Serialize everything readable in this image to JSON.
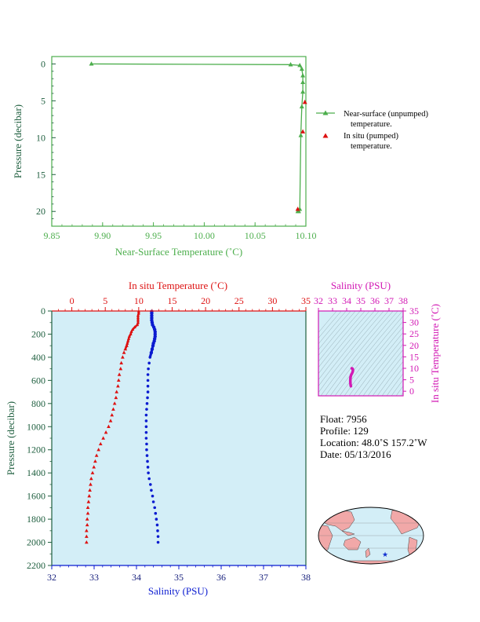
{
  "colors": {
    "green": "#4cae4c",
    "red": "#dd1111",
    "blue": "#0a1bd0",
    "magenta": "#d219b4",
    "navy": "#1a237e",
    "darkgreen": "#1f5f3f",
    "panel_bg": "#d3eef7",
    "land": "#f1a8a8",
    "ocean": "#d3eef7"
  },
  "top_chart": {
    "xlabel": "Near-Surface Temperature (˚C)",
    "ylabel": "Pressure (decibar)",
    "x_ticks": [
      "9.85",
      "9.90",
      "9.95",
      "10.00",
      "10.05",
      "10.10"
    ],
    "y_ticks": [
      "0",
      "5",
      "10",
      "15",
      "20"
    ],
    "legend": {
      "item1_line1": "Near-surface (unpumped)",
      "item1_line2": "temperature.",
      "item2_line1": "In situ (pumped)",
      "item2_line2": "temperature."
    }
  },
  "bottom_chart": {
    "top_xlabel": "In situ Temperature (˚C)",
    "bottom_xlabel": "Salinity (PSU)",
    "ylabel": "Pressure (decibar)",
    "temp_ticks": [
      "0",
      "5",
      "10",
      "15",
      "20",
      "25",
      "30",
      "35"
    ],
    "sal_ticks": [
      "32",
      "33",
      "34",
      "35",
      "36",
      "37",
      "38"
    ],
    "p_ticks": [
      "0",
      "200",
      "400",
      "600",
      "800",
      "1000",
      "1200",
      "1400",
      "1600",
      "1800",
      "2000",
      "2200"
    ]
  },
  "ts_inset": {
    "xlabel": "Salinity (PSU)",
    "ylabel": "In situ Temperature (˚C)",
    "x_ticks": [
      "32",
      "33",
      "34",
      "35",
      "36",
      "37",
      "38"
    ],
    "y_ticks": [
      "0",
      "5",
      "10",
      "15",
      "20",
      "25",
      "30",
      "35"
    ]
  },
  "float_info": {
    "float": "Float:  7956",
    "profile": "Profile:  129",
    "location": "Location:  48.0˚S  157.2˚W",
    "date": "Date:  05/13/2016"
  },
  "map": {
    "marker": "float-location-star"
  },
  "footer_text": "",
  "chart_data": [
    {
      "type": "line",
      "title": "",
      "xlabel": "Near-Surface Temperature (˚C)",
      "ylabel": "Pressure (decibar)",
      "xlim": [
        9.85,
        10.1
      ],
      "ylim": [
        22,
        -1
      ],
      "series": [
        {
          "name": "Near-surface (unpumped) temperature.",
          "x": [
            9.889,
            10.085,
            10.094,
            10.096,
            10.097,
            10.097,
            10.097,
            10.096,
            10.095,
            10.094,
            10.093,
            10.092
          ],
          "y": [
            0.0,
            0.1,
            0.2,
            0.7,
            1.6,
            2.5,
            3.8,
            5.8,
            9.7,
            19.7,
            20.0,
            20.0
          ]
        },
        {
          "name": "In situ (pumped) temperature.",
          "x": [
            10.099,
            10.097,
            10.092
          ],
          "y": [
            5.2,
            9.2,
            19.7
          ]
        }
      ]
    },
    {
      "type": "scatter",
      "title": "",
      "xlabel": "Salinity (PSU)",
      "x2label": "In situ Temperature (˚C)",
      "ylabel": "Pressure (decibar)",
      "xlim": [
        32,
        38
      ],
      "x2lim": [
        -3,
        35
      ],
      "ylim": [
        2200,
        0
      ],
      "series": [
        {
          "name": "In situ Temperature (˚C)",
          "axis": "top",
          "pressure": [
            5,
            20,
            40,
            60,
            80,
            100,
            120,
            140,
            160,
            180,
            200,
            220,
            240,
            260,
            280,
            300,
            330,
            360,
            400,
            450,
            500,
            550,
            600,
            650,
            700,
            750,
            800,
            850,
            900,
            950,
            1000,
            1050,
            1100,
            1150,
            1200,
            1250,
            1300,
            1350,
            1400,
            1450,
            1500,
            1550,
            1600,
            1650,
            1700,
            1750,
            1800,
            1850,
            1900,
            1950,
            2000
          ],
          "values": [
            10.0,
            10.0,
            9.9,
            9.9,
            9.9,
            9.9,
            9.8,
            9.4,
            9.1,
            8.9,
            8.8,
            8.6,
            8.5,
            8.4,
            8.3,
            8.2,
            8.0,
            7.8,
            7.6,
            7.4,
            7.3,
            7.1,
            7.0,
            6.9,
            6.7,
            6.6,
            6.4,
            6.2,
            6.0,
            5.8,
            5.5,
            5.1,
            4.7,
            4.3,
            4.0,
            3.7,
            3.5,
            3.3,
            3.1,
            2.9,
            2.8,
            2.7,
            2.6,
            2.5,
            2.4,
            2.4,
            2.3,
            2.3,
            2.2,
            2.2,
            2.2
          ]
        },
        {
          "name": "Salinity (PSU)",
          "axis": "bottom",
          "pressure": [
            5,
            20,
            40,
            60,
            80,
            100,
            120,
            140,
            160,
            180,
            200,
            220,
            240,
            260,
            280,
            300,
            330,
            360,
            400,
            450,
            500,
            550,
            600,
            650,
            700,
            750,
            800,
            850,
            900,
            950,
            1000,
            1050,
            1100,
            1150,
            1200,
            1250,
            1300,
            1350,
            1400,
            1450,
            1500,
            1550,
            1600,
            1650,
            1700,
            1750,
            1800,
            1850,
            1900,
            1950,
            2000
          ],
          "values": [
            34.36,
            34.36,
            34.36,
            34.36,
            34.36,
            34.37,
            34.38,
            34.41,
            34.43,
            34.44,
            34.44,
            34.44,
            34.43,
            34.42,
            34.4,
            34.39,
            34.37,
            34.35,
            34.32,
            34.3,
            34.28,
            34.27,
            34.27,
            34.27,
            34.27,
            34.26,
            34.25,
            34.24,
            34.23,
            34.23,
            34.23,
            34.23,
            34.23,
            34.24,
            34.24,
            34.25,
            34.26,
            34.27,
            34.28,
            34.3,
            34.33,
            34.35,
            34.38,
            34.4,
            34.43,
            34.45,
            34.47,
            34.49,
            34.5,
            34.51,
            34.51
          ]
        }
      ]
    },
    {
      "type": "line",
      "title": "",
      "xlabel": "Salinity (PSU)",
      "ylabel": "In situ Temperature (˚C)",
      "xlim": [
        32,
        38
      ],
      "ylim": [
        -2,
        35
      ],
      "series": [
        {
          "name": "",
          "x": [
            34.3,
            34.28,
            34.27,
            34.26,
            34.26,
            34.27,
            34.3,
            34.34,
            34.38,
            34.42,
            34.44,
            34.44,
            34.42,
            34.38,
            34.36
          ],
          "y": [
            2.2,
            2.8,
            3.3,
            4.0,
            5.0,
            6.0,
            6.8,
            7.4,
            7.8,
            8.4,
            8.9,
            9.4,
            9.8,
            10.0,
            10.0
          ]
        }
      ]
    }
  ]
}
